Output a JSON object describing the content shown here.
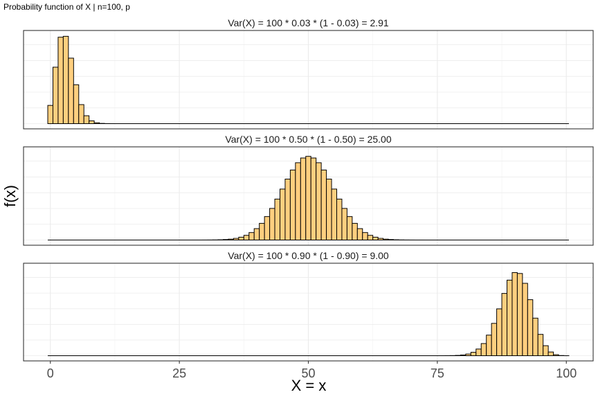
{
  "header": {
    "title": "Probability function of X | n=100, p"
  },
  "chart_data": {
    "type": "bar",
    "n": 100,
    "xlabel": "X = x",
    "ylabel": "f(x)",
    "xlim": [
      0,
      100
    ],
    "x_ticks": [
      0,
      25,
      50,
      75,
      100
    ],
    "x_tick_labels": [
      "0",
      "25",
      "50",
      "75",
      "100"
    ],
    "bar_fill": "#ffcf7f",
    "bar_stroke": "#000000",
    "grid": true,
    "y_ticks_shown": false,
    "panels": [
      {
        "strip_label": "Var(X) = 100 * 0.03 * (1 - 0.03) = 2.91",
        "p": 0.03,
        "ymax": 0.23
      },
      {
        "strip_label": "Var(X) = 100 * 0.50 * (1 - 0.50) = 25.00",
        "p": 0.5,
        "ymax": 0.084
      },
      {
        "strip_label": "Var(X) = 100 * 0.90 * (1 - 0.90) = 9.00",
        "p": 0.9,
        "ymax": 0.139
      }
    ]
  }
}
